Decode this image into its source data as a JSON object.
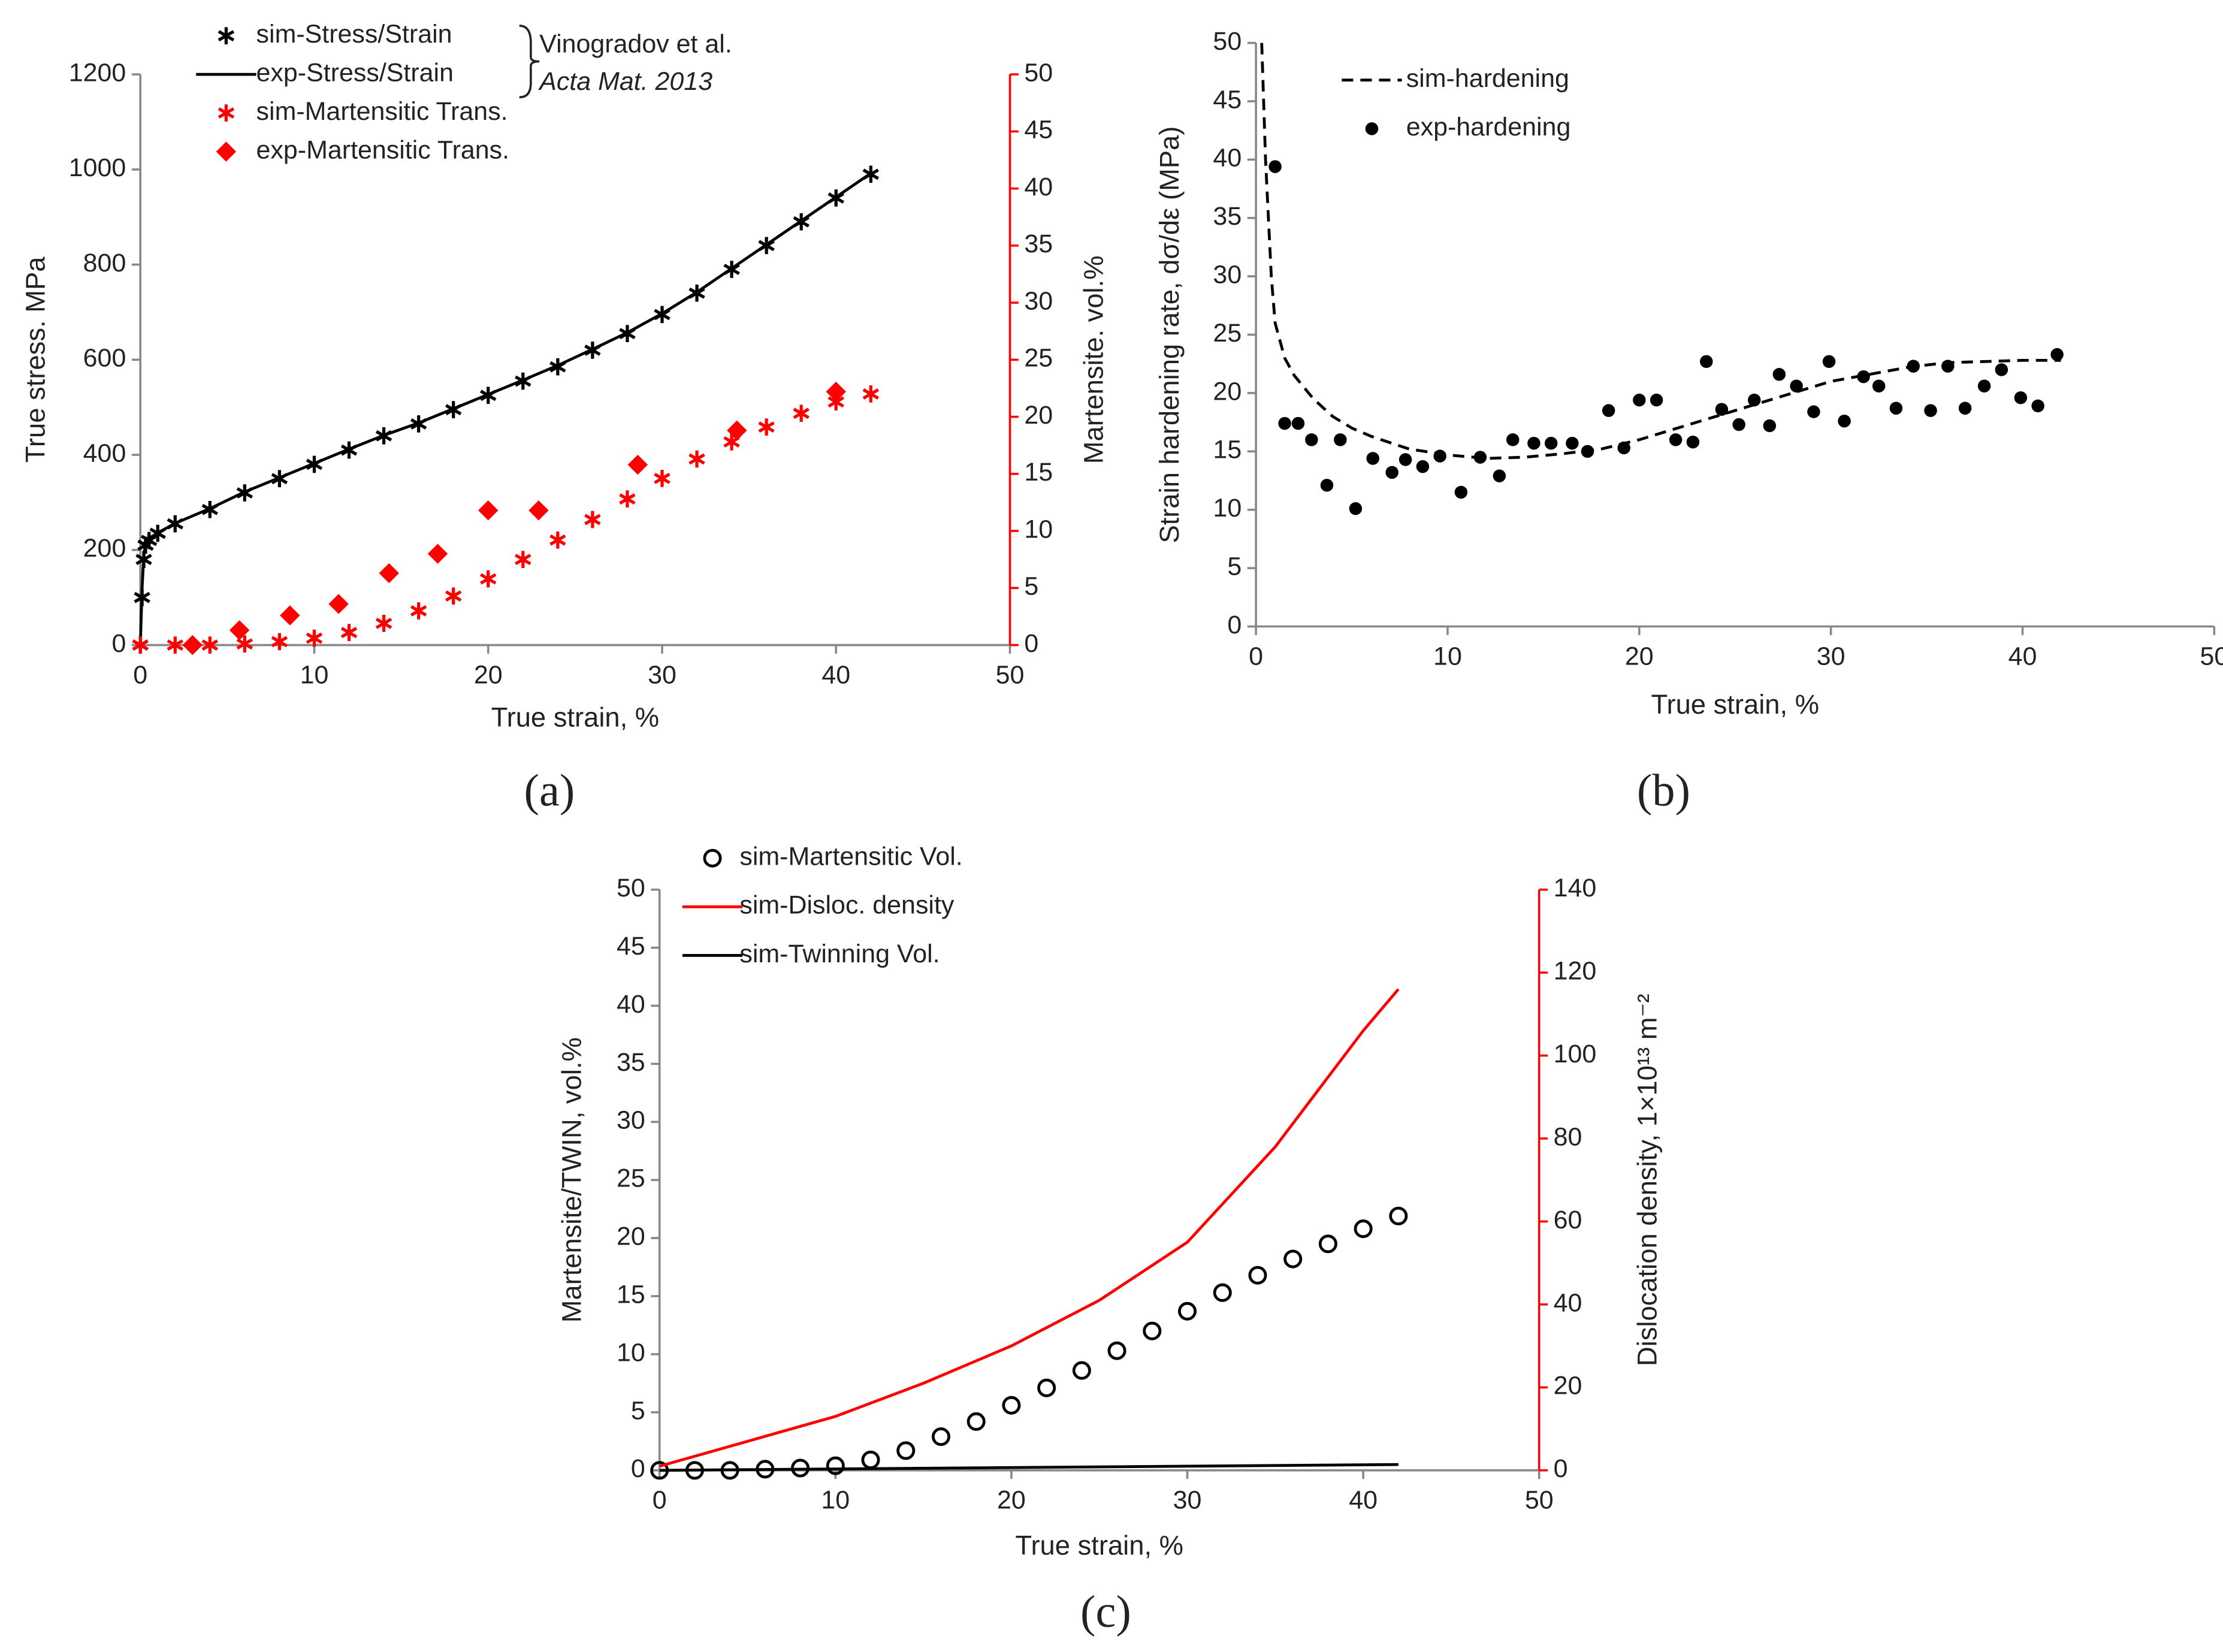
{
  "chart_data": [
    {
      "type": "line",
      "caption": "(a)",
      "x_label": "True strain, %",
      "y_label": "True stress. MPa",
      "y2_label": "Martensite. vol.%",
      "annotations": [
        "Vinogradov et al.",
        "Acta Mat. 2013"
      ],
      "xlim": [
        0,
        50
      ],
      "xticks": [
        0,
        10,
        20,
        30,
        40,
        50
      ],
      "ylim": [
        0,
        1200
      ],
      "yticks": [
        0,
        200,
        400,
        600,
        800,
        1000,
        1200
      ],
      "y2lim": [
        0,
        50
      ],
      "y2ticks": [
        0,
        5,
        10,
        15,
        20,
        25,
        30,
        35,
        40,
        45,
        50
      ],
      "y2_axis_color": "#ff0000",
      "series": [
        {
          "name": "sim-Stress/Strain",
          "color": "#000000",
          "marker": "star",
          "linestyle": "none",
          "x": [
            0,
            0.1,
            0.2,
            0.3,
            0.5,
            1,
            2,
            4,
            6,
            8,
            10,
            12,
            14,
            16,
            18,
            20,
            22,
            24,
            26,
            28,
            30,
            32,
            34,
            36,
            38,
            40,
            42
          ],
          "values": [
            0,
            100,
            180,
            210,
            220,
            235,
            255,
            285,
            320,
            350,
            380,
            410,
            440,
            465,
            495,
            525,
            555,
            585,
            620,
            655,
            695,
            740,
            790,
            840,
            890,
            940,
            990
          ]
        },
        {
          "name": "exp-Stress/Strain",
          "color": "#000000",
          "marker": "none",
          "linestyle": "solid",
          "x": [
            0,
            0.1,
            0.2,
            0.3,
            0.5,
            1,
            2,
            4,
            6,
            8,
            10,
            12,
            14,
            16,
            18,
            20,
            22,
            24,
            26,
            28,
            30,
            32,
            34,
            36,
            38,
            40,
            42
          ],
          "values": [
            0,
            120,
            190,
            212,
            222,
            236,
            256,
            287,
            322,
            352,
            382,
            412,
            441,
            467,
            497,
            527,
            557,
            588,
            622,
            657,
            697,
            742,
            792,
            842,
            892,
            942,
            992
          ]
        },
        {
          "name": "sim-Martensitic Trans.",
          "color": "#ff0000",
          "marker": "star",
          "linestyle": "none",
          "axis": "y2",
          "x": [
            0,
            2,
            4,
            6,
            8,
            10,
            12,
            14,
            16,
            18,
            20,
            22,
            24,
            26,
            28,
            30,
            32,
            34,
            36,
            38,
            40,
            42
          ],
          "values": [
            0,
            0,
            0,
            0.1,
            0.3,
            0.6,
            1.1,
            1.9,
            3,
            4.3,
            5.8,
            7.5,
            9.2,
            11,
            12.8,
            14.6,
            16.3,
            17.8,
            19.1,
            20.3,
            21.3,
            22
          ]
        },
        {
          "name": "exp-Martensitic Trans.",
          "color": "#ff0000",
          "marker": "diamond",
          "linestyle": "none",
          "axis": "y2",
          "x": [
            3,
            5.7,
            8.6,
            11.4,
            14.3,
            17.1,
            20,
            22.9,
            28.6,
            34.3,
            40
          ],
          "values": [
            0,
            1.3,
            2.6,
            3.6,
            6.3,
            8,
            11.8,
            11.8,
            15.8,
            18.8,
            22.2
          ]
        }
      ]
    },
    {
      "type": "line",
      "caption": "(b)",
      "x_label": "True strain, %",
      "y_label": "Strain hardening rate, dσ/dε (MPa)",
      "xlim": [
        0,
        50
      ],
      "xticks": [
        0,
        10,
        20,
        30,
        40,
        50
      ],
      "ylim": [
        0,
        50
      ],
      "yticks": [
        0,
        5,
        10,
        15,
        20,
        25,
        30,
        35,
        40,
        45,
        50
      ],
      "series": [
        {
          "name": "sim-hardening",
          "color": "#000000",
          "marker": "none",
          "linestyle": "dashed",
          "x": [
            0.3,
            0.5,
            0.8,
            1,
            1.5,
            2,
            3,
            4,
            5,
            6,
            8,
            10,
            12,
            14,
            16,
            18,
            20,
            22,
            24,
            26,
            28,
            30,
            32,
            34,
            36,
            38,
            40,
            42
          ],
          "values": [
            50,
            40,
            30,
            26,
            23,
            21.5,
            19.5,
            18,
            17,
            16.3,
            15.2,
            14.7,
            14.4,
            14.5,
            14.8,
            15.2,
            16,
            17,
            18,
            19,
            20,
            21,
            21.6,
            22.2,
            22.6,
            22.7,
            22.8,
            22.8
          ]
        },
        {
          "name": "exp-hardening",
          "color": "#000000",
          "marker": "dot",
          "linestyle": "none",
          "x": [
            1,
            1.5,
            2.2,
            2.9,
            3.7,
            4.4,
            5.2,
            6.1,
            7.1,
            7.8,
            8.7,
            9.6,
            10.7,
            11.7,
            12.7,
            13.4,
            14.5,
            15.4,
            16.5,
            17.3,
            18.4,
            19.2,
            20,
            20.9,
            21.9,
            22.8,
            23.5,
            24.3,
            25.2,
            26,
            26.8,
            27.3,
            28.2,
            29.1,
            29.9,
            30.7,
            31.7,
            32.5,
            33.4,
            34.3,
            35.2,
            36.1,
            37,
            38,
            38.9,
            39.9,
            40.8,
            41.8
          ],
          "values": [
            39.4,
            17.4,
            17.4,
            16,
            12.1,
            16,
            10.1,
            14.4,
            13.2,
            14.3,
            13.7,
            14.6,
            11.5,
            14.5,
            12.9,
            16,
            15.7,
            15.7,
            15.7,
            15,
            18.5,
            15.3,
            19.4,
            19.4,
            16,
            15.8,
            22.7,
            18.6,
            17.3,
            19.4,
            17.2,
            21.6,
            20.6,
            18.4,
            22.7,
            17.6,
            21.4,
            20.6,
            18.7,
            22.3,
            18.5,
            22.3,
            18.7,
            20.6,
            22,
            19.6,
            18.9,
            23.3
          ]
        }
      ]
    },
    {
      "type": "line",
      "caption": "(c)",
      "x_label": "True strain, %",
      "y_label": "Martensite/TWIN, vol.%",
      "y2_label": "Dislocation density, 1×10¹³ m⁻²",
      "xlim": [
        0,
        50
      ],
      "xticks": [
        0,
        10,
        20,
        30,
        40,
        50
      ],
      "ylim": [
        0,
        50
      ],
      "yticks": [
        0,
        5,
        10,
        15,
        20,
        25,
        30,
        35,
        40,
        45,
        50
      ],
      "y2lim": [
        0,
        140
      ],
      "y2ticks": [
        0,
        20,
        40,
        60,
        80,
        100,
        120,
        140
      ],
      "y2_axis_color": "#ff0000",
      "series": [
        {
          "name": "sim-Martensitic Vol.",
          "color": "#000000",
          "marker": "circle",
          "linestyle": "none",
          "x": [
            0,
            2,
            4,
            6,
            8,
            10,
            12,
            14,
            16,
            18,
            20,
            22,
            24,
            26,
            28,
            30,
            32,
            34,
            36,
            38,
            40,
            42
          ],
          "values": [
            0,
            0,
            0,
            0.1,
            0.2,
            0.4,
            0.9,
            1.7,
            2.9,
            4.2,
            5.6,
            7.1,
            8.6,
            10.3,
            12,
            13.7,
            15.3,
            16.8,
            18.2,
            19.5,
            20.8,
            21.9
          ]
        },
        {
          "name": "sim-Disloc. density",
          "color": "#ff0000",
          "marker": "none",
          "linestyle": "solid",
          "axis": "y2",
          "x": [
            0,
            5,
            10,
            15,
            20,
            25,
            30,
            35,
            40,
            42
          ],
          "values": [
            1,
            7,
            13,
            21,
            30,
            41,
            55,
            78,
            106,
            116
          ]
        },
        {
          "name": "sim-Twinning Vol.",
          "color": "#000000",
          "marker": "none",
          "linestyle": "solid",
          "x": [
            0,
            42
          ],
          "values": [
            0,
            0.5
          ]
        }
      ]
    }
  ]
}
